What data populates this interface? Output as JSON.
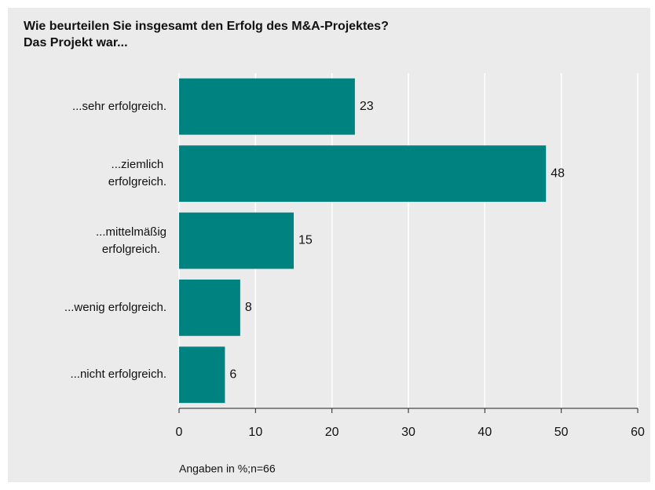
{
  "chart_data": {
    "type": "bar",
    "orientation": "horizontal",
    "title": "Wie beurteilen Sie insgesamt den Erfolg des M&A-Projektes?",
    "subtitle": "Das Projekt war...",
    "categories": [
      "...sehr erfolgreich.",
      "...ziemlich\nerfolgreich.",
      "...mittelmäßig\nerfolgreich.",
      "...wenig erfolgreich.",
      "...nicht erfolgreich."
    ],
    "values": [
      23,
      48,
      15,
      8,
      6
    ],
    "color": "#008280",
    "xlim": [
      0,
      60
    ],
    "xticks": [
      0,
      10,
      20,
      30,
      40,
      50,
      60
    ],
    "grid": true,
    "note": "Angaben in %;n=66"
  }
}
